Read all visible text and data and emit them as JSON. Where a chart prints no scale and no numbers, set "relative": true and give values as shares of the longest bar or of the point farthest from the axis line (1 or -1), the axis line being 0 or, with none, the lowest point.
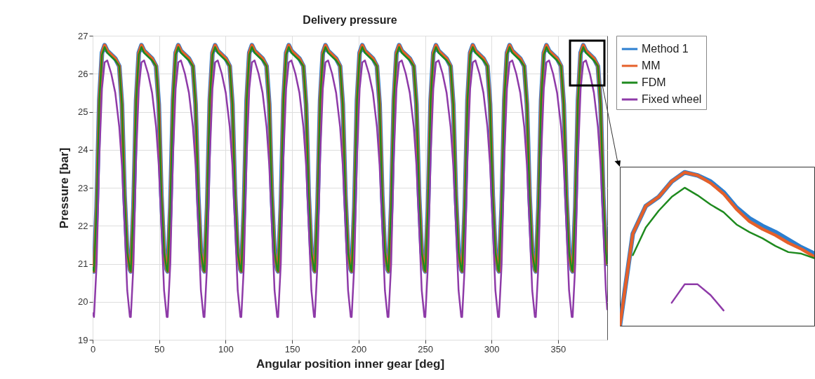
{
  "chart_data": [
    {
      "type": "line",
      "title": "Delivery pressure",
      "xlabel": "Angular position inner gear [deg]",
      "ylabel": "Pressure [bar]",
      "xlim": [
        0,
        387
      ],
      "ylim": [
        19,
        27
      ],
      "xticks": [
        0,
        50,
        100,
        150,
        200,
        250,
        300,
        350
      ],
      "yticks": [
        19,
        20,
        21,
        22,
        23,
        24,
        25,
        26,
        27
      ],
      "grid": true,
      "legend": "top right",
      "x": [
        0,
        1.0,
        3.0,
        5.0,
        7.0,
        9.0,
        11.0,
        14.0,
        17.0,
        20.0,
        22.0,
        24.0,
        26.0,
        28.0,
        28.7,
        30.7,
        32.7,
        34.7,
        36.7,
        38.7,
        41.7,
        44.7,
        47.7,
        49.7,
        51.7,
        53.7,
        55.7,
        56.4,
        58.4,
        60.4,
        62.4,
        64.4,
        66.4,
        69.4,
        72.4,
        75.4,
        77.4,
        79.4,
        81.4,
        83.4,
        84.1,
        86.1,
        88.1,
        90.1,
        92.1,
        94.1,
        97.1,
        100.1,
        103.1,
        105.1,
        107.1,
        109.1,
        111.1,
        111.8,
        113.8,
        115.8,
        117.8,
        119.8,
        121.8,
        124.8,
        127.8,
        130.8,
        132.8,
        134.8,
        136.8,
        138.8,
        139.5,
        141.5,
        143.5,
        145.5,
        147.5,
        149.5,
        152.5,
        155.5,
        158.5,
        160.5,
        162.5,
        164.5,
        166.5,
        167.1,
        169.1,
        171.1,
        173.1,
        175.1,
        177.1,
        180.1,
        183.1,
        186.1,
        188.1,
        190.1,
        192.1,
        194.1,
        194.8,
        196.8,
        198.8,
        200.8,
        202.8,
        204.8,
        207.8,
        210.8,
        213.8,
        215.8,
        217.8,
        219.8,
        221.8,
        222.5,
        224.5,
        226.5,
        228.5,
        230.5,
        232.5,
        235.5,
        238.5,
        241.5,
        243.5,
        245.5,
        247.5,
        249.5,
        250.2,
        252.2,
        254.2,
        256.2,
        258.2,
        260.2,
        263.2,
        266.2,
        269.2,
        271.2,
        273.2,
        275.2,
        277.2,
        277.9,
        279.9,
        281.9,
        283.9,
        285.9,
        287.9,
        290.9,
        293.9,
        296.9,
        298.9,
        300.9,
        302.9,
        304.9,
        305.6,
        307.6,
        309.6,
        311.6,
        313.6,
        315.6,
        318.6,
        321.6,
        324.6,
        326.6,
        328.6,
        330.6,
        332.6,
        333.3,
        335.3,
        337.3,
        339.3,
        341.3,
        343.3,
        346.3,
        349.3,
        352.3,
        354.3,
        356.3,
        358.3,
        360.3,
        361.0,
        363.0,
        365.0,
        367.0,
        369.0,
        371.0,
        374.0,
        377.0,
        380.0,
        382.0,
        384.0,
        386.0,
        387
      ],
      "series": [
        {
          "name": "Method 1",
          "color": "#2c7fd0",
          "values": [
            20.9,
            20.8,
            22.5,
            25.3,
            26.55,
            26.75,
            26.6,
            26.5,
            26.4,
            26.2,
            25.2,
            22.8,
            21.3,
            20.85,
            20.8,
            22.5,
            25.3,
            26.55,
            26.75,
            26.6,
            26.5,
            26.4,
            26.2,
            25.2,
            22.8,
            21.3,
            20.85,
            20.8,
            22.5,
            25.3,
            26.55,
            26.75,
            26.6,
            26.5,
            26.4,
            26.2,
            25.2,
            22.8,
            21.3,
            20.85,
            20.8,
            22.5,
            25.3,
            26.55,
            26.75,
            26.6,
            26.5,
            26.4,
            26.2,
            25.2,
            22.8,
            21.3,
            20.85,
            20.8,
            22.5,
            25.3,
            26.55,
            26.75,
            26.6,
            26.5,
            26.4,
            26.2,
            25.2,
            22.8,
            21.3,
            20.85,
            20.8,
            22.5,
            25.3,
            26.55,
            26.75,
            26.6,
            26.5,
            26.4,
            26.2,
            25.2,
            22.8,
            21.3,
            20.85,
            20.8,
            22.5,
            25.3,
            26.55,
            26.75,
            26.6,
            26.5,
            26.4,
            26.2,
            25.2,
            22.8,
            21.3,
            20.85,
            20.8,
            22.5,
            25.3,
            26.55,
            26.75,
            26.6,
            26.5,
            26.4,
            26.2,
            25.2,
            22.8,
            21.3,
            20.85,
            20.8,
            22.5,
            25.3,
            26.55,
            26.75,
            26.6,
            26.5,
            26.4,
            26.2,
            25.2,
            22.8,
            21.3,
            20.85,
            20.8,
            22.5,
            25.3,
            26.55,
            26.75,
            26.6,
            26.5,
            26.4,
            26.2,
            25.2,
            22.8,
            21.3,
            20.85,
            20.8,
            22.5,
            25.3,
            26.55,
            26.75,
            26.6,
            26.5,
            26.4,
            26.2,
            25.2,
            22.8,
            21.3,
            20.85,
            20.8,
            22.5,
            25.3,
            26.55,
            26.75,
            26.6,
            26.5,
            26.4,
            26.2,
            25.2,
            22.8,
            21.3,
            20.85,
            20.8,
            22.5,
            25.3,
            26.55,
            26.75,
            26.6,
            26.5,
            26.4,
            26.2,
            25.2,
            22.8,
            21.3,
            20.85,
            20.8,
            22.5,
            25.3,
            26.55,
            26.75,
            26.6,
            26.5,
            26.4,
            26.2,
            25.2,
            22.8,
            21.3,
            21.0
          ]
        },
        {
          "name": "MM",
          "color": "#e5602a",
          "values": [
            20.9,
            20.8,
            22.5,
            25.3,
            26.55,
            26.75,
            26.6,
            26.5,
            26.4,
            26.2,
            25.2,
            22.8,
            21.3,
            20.85,
            20.8,
            22.5,
            25.3,
            26.55,
            26.75,
            26.6,
            26.5,
            26.4,
            26.2,
            25.2,
            22.8,
            21.3,
            20.85,
            20.8,
            22.5,
            25.3,
            26.55,
            26.75,
            26.6,
            26.5,
            26.4,
            26.2,
            25.2,
            22.8,
            21.3,
            20.85,
            20.8,
            22.5,
            25.3,
            26.55,
            26.75,
            26.6,
            26.5,
            26.4,
            26.2,
            25.2,
            22.8,
            21.3,
            20.85,
            20.8,
            22.5,
            25.3,
            26.55,
            26.75,
            26.6,
            26.5,
            26.4,
            26.2,
            25.2,
            22.8,
            21.3,
            20.85,
            20.8,
            22.5,
            25.3,
            26.55,
            26.75,
            26.6,
            26.5,
            26.4,
            26.2,
            25.2,
            22.8,
            21.3,
            20.85,
            20.8,
            22.5,
            25.3,
            26.55,
            26.75,
            26.6,
            26.5,
            26.4,
            26.2,
            25.2,
            22.8,
            21.3,
            20.85,
            20.8,
            22.5,
            25.3,
            26.55,
            26.75,
            26.6,
            26.5,
            26.4,
            26.2,
            25.2,
            22.8,
            21.3,
            20.85,
            20.8,
            22.5,
            25.3,
            26.55,
            26.75,
            26.6,
            26.5,
            26.4,
            26.2,
            25.2,
            22.8,
            21.3,
            20.85,
            20.8,
            22.5,
            25.3,
            26.55,
            26.75,
            26.6,
            26.5,
            26.4,
            26.2,
            25.2,
            22.8,
            21.3,
            20.85,
            20.8,
            22.5,
            25.3,
            26.55,
            26.75,
            26.6,
            26.5,
            26.4,
            26.2,
            25.2,
            22.8,
            21.3,
            20.85,
            20.8,
            22.5,
            25.3,
            26.55,
            26.75,
            26.6,
            26.5,
            26.4,
            26.2,
            25.2,
            22.8,
            21.3,
            20.85,
            20.8,
            22.5,
            25.3,
            26.55,
            26.75,
            26.6,
            26.5,
            26.4,
            26.2,
            25.2,
            22.8,
            21.3,
            20.85,
            20.8,
            22.5,
            25.3,
            26.55,
            26.75,
            26.6,
            26.5,
            26.4,
            26.2,
            25.2,
            22.8,
            21.3,
            21.0
          ]
        },
        {
          "name": "FDM",
          "color": "#1e8a1e",
          "values": [
            20.9,
            20.8,
            22.5,
            25.3,
            26.5,
            26.7,
            26.55,
            26.45,
            26.35,
            26.2,
            25.2,
            22.8,
            21.3,
            20.85,
            20.8,
            22.5,
            25.3,
            26.5,
            26.7,
            26.55,
            26.45,
            26.35,
            26.2,
            25.2,
            22.8,
            21.3,
            20.85,
            20.8,
            22.5,
            25.3,
            26.5,
            26.7,
            26.55,
            26.45,
            26.35,
            26.2,
            25.2,
            22.8,
            21.3,
            20.85,
            20.8,
            22.5,
            25.3,
            26.5,
            26.7,
            26.55,
            26.45,
            26.35,
            26.2,
            25.2,
            22.8,
            21.3,
            20.85,
            20.8,
            22.5,
            25.3,
            26.5,
            26.7,
            26.55,
            26.45,
            26.35,
            26.2,
            25.2,
            22.8,
            21.3,
            20.85,
            20.8,
            22.5,
            25.3,
            26.5,
            26.7,
            26.55,
            26.45,
            26.35,
            26.2,
            25.2,
            22.8,
            21.3,
            20.85,
            20.8,
            22.5,
            25.3,
            26.5,
            26.7,
            26.55,
            26.45,
            26.35,
            26.2,
            25.2,
            22.8,
            21.3,
            20.85,
            20.8,
            22.5,
            25.3,
            26.5,
            26.7,
            26.55,
            26.45,
            26.35,
            26.2,
            25.2,
            22.8,
            21.3,
            20.85,
            20.8,
            22.5,
            25.3,
            26.5,
            26.7,
            26.55,
            26.45,
            26.35,
            26.2,
            25.2,
            22.8,
            21.3,
            20.85,
            20.8,
            22.5,
            25.3,
            26.5,
            26.7,
            26.55,
            26.45,
            26.35,
            26.2,
            25.2,
            22.8,
            21.3,
            20.85,
            20.8,
            22.5,
            25.3,
            26.5,
            26.7,
            26.55,
            26.45,
            26.35,
            26.2,
            25.2,
            22.8,
            21.3,
            20.85,
            20.8,
            22.5,
            25.3,
            26.5,
            26.7,
            26.55,
            26.45,
            26.35,
            26.2,
            25.2,
            22.8,
            21.3,
            20.85,
            20.8,
            22.5,
            25.3,
            26.5,
            26.7,
            26.55,
            26.45,
            26.35,
            26.2,
            25.2,
            22.8,
            21.3,
            20.85,
            20.8,
            22.5,
            25.3,
            26.5,
            26.7,
            26.55,
            26.45,
            26.35,
            26.2,
            25.2,
            22.8,
            21.3,
            21.0
          ]
        },
        {
          "name": "Fixed wheel",
          "color": "#8e3aa8",
          "values": [
            19.7,
            19.6,
            21.0,
            23.8,
            25.6,
            26.3,
            26.35,
            26.0,
            25.5,
            24.6,
            23.6,
            22.0,
            20.3,
            19.6,
            19.6,
            21.0,
            23.8,
            25.6,
            26.3,
            26.35,
            26.0,
            25.5,
            24.6,
            23.6,
            22.0,
            20.3,
            19.6,
            19.6,
            21.0,
            23.8,
            25.6,
            26.3,
            26.35,
            26.0,
            25.5,
            24.6,
            23.6,
            22.0,
            20.3,
            19.6,
            19.6,
            21.0,
            23.8,
            25.6,
            26.3,
            26.35,
            26.0,
            25.5,
            24.6,
            23.6,
            22.0,
            20.3,
            19.6,
            19.6,
            21.0,
            23.8,
            25.6,
            26.3,
            26.35,
            26.0,
            25.5,
            24.6,
            23.6,
            22.0,
            20.3,
            19.6,
            19.6,
            21.0,
            23.8,
            25.6,
            26.3,
            26.35,
            26.0,
            25.5,
            24.6,
            23.6,
            22.0,
            20.3,
            19.6,
            19.6,
            21.0,
            23.8,
            25.6,
            26.3,
            26.35,
            26.0,
            25.5,
            24.6,
            23.6,
            22.0,
            20.3,
            19.6,
            19.6,
            21.0,
            23.8,
            25.6,
            26.3,
            26.35,
            26.0,
            25.5,
            24.6,
            23.6,
            22.0,
            20.3,
            19.6,
            19.6,
            21.0,
            23.8,
            25.6,
            26.3,
            26.35,
            26.0,
            25.5,
            24.6,
            23.6,
            22.0,
            20.3,
            19.6,
            19.6,
            21.0,
            23.8,
            25.6,
            26.3,
            26.35,
            26.0,
            25.5,
            24.6,
            23.6,
            22.0,
            20.3,
            19.6,
            19.6,
            21.0,
            23.8,
            25.6,
            26.3,
            26.35,
            26.0,
            25.5,
            24.6,
            23.6,
            22.0,
            20.3,
            19.6,
            19.6,
            21.0,
            23.8,
            25.6,
            26.3,
            26.35,
            26.0,
            25.5,
            24.6,
            23.6,
            22.0,
            20.3,
            19.6,
            19.6,
            21.0,
            23.8,
            25.6,
            26.3,
            26.35,
            26.0,
            25.5,
            24.6,
            23.6,
            22.0,
            20.3,
            19.6,
            19.6,
            21.0,
            23.8,
            25.6,
            26.3,
            26.35,
            26.0,
            25.5,
            24.6,
            23.6,
            22.0,
            20.3,
            19.8
          ]
        }
      ]
    },
    {
      "type": "line",
      "relative": true,
      "categories": [
        null,
        null,
        null,
        null,
        null,
        null,
        null,
        null,
        null,
        null,
        null,
        null,
        null,
        null,
        null,
        null
      ],
      "series": [
        {
          "color": "#2c7fd0",
          "values": [
            0,
            0.6,
            0.78,
            0.84,
            0.94,
            1,
            0.98,
            0.94,
            0.87,
            0.77,
            0.7,
            0.65,
            0.61,
            0.56,
            0.51,
            0.47
          ]
        },
        {
          "color": "#e5602a",
          "values": [
            0,
            0.6,
            0.78,
            0.84,
            0.94,
            1,
            0.98,
            0.93,
            0.86,
            0.76,
            0.68,
            0.63,
            0.59,
            0.54,
            0.5,
            0.45
          ]
        },
        {
          "color": "#1e8a1e",
          "values": [
            null,
            0.46,
            0.64,
            0.75,
            0.84,
            0.9,
            0.85,
            0.79,
            0.74,
            0.66,
            0.61,
            0.57,
            0.52,
            0.48,
            0.47,
            0.44
          ]
        },
        {
          "color": "#8e3aa8",
          "values": [
            null,
            null,
            null,
            null,
            0.15,
            0.27,
            0.27,
            0.2,
            0.1,
            null,
            null,
            null,
            null,
            null,
            null,
            null
          ]
        }
      ]
    }
  ]
}
